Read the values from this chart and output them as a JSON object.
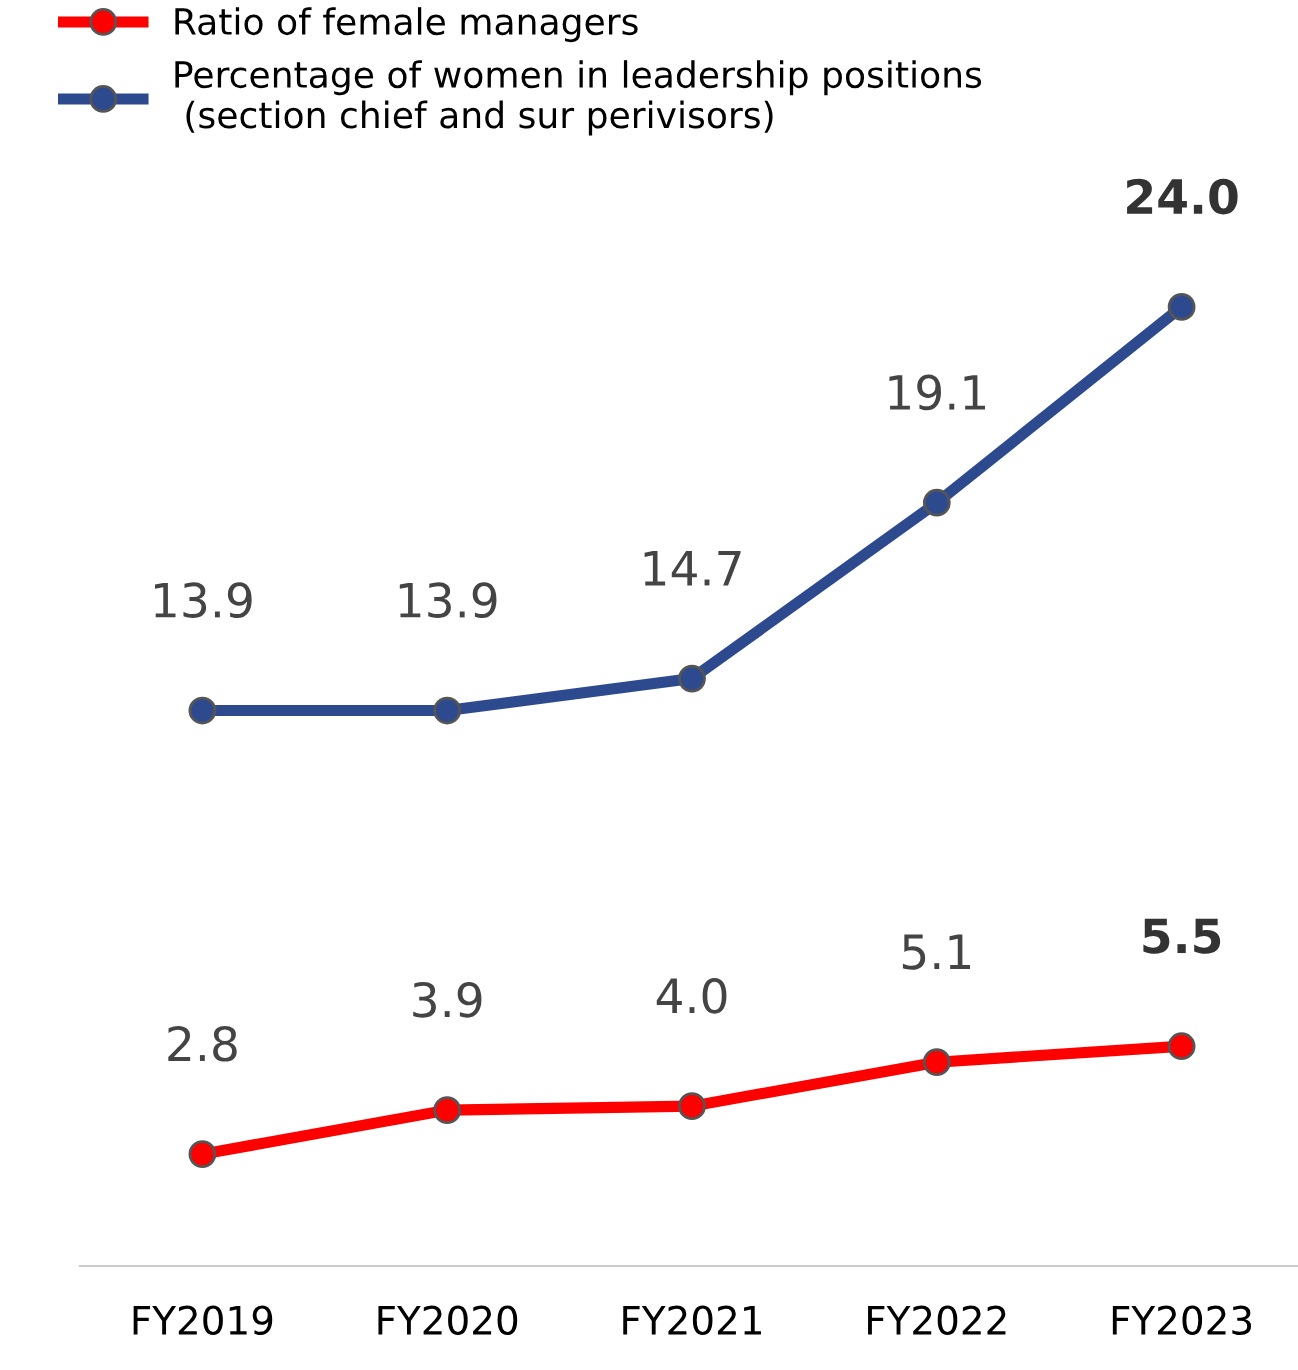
{
  "chart_data": {
    "type": "line",
    "categories": [
      "FY2019",
      "FY2020",
      "FY2021",
      "FY2022",
      "FY2023"
    ],
    "series": [
      {
        "name": "Ratio of female managers",
        "color": "#ff0000",
        "values": [
          2.8,
          3.9,
          4.0,
          5.1,
          5.5
        ],
        "value_labels": [
          "2.8",
          "3.9",
          "4.0",
          "5.1",
          "5.5"
        ]
      },
      {
        "name": "Percentage of women in leadership positions\n (section chief and sur perivisors)",
        "color": "#2e4a8f",
        "values": [
          13.9,
          13.9,
          14.7,
          19.1,
          24.0
        ],
        "value_labels": [
          "13.9",
          "13.9",
          "14.7",
          "19.1",
          "24.0"
        ]
      }
    ],
    "marker": "circle",
    "line_style": "solid",
    "legend": "top left",
    "grid": false
  }
}
